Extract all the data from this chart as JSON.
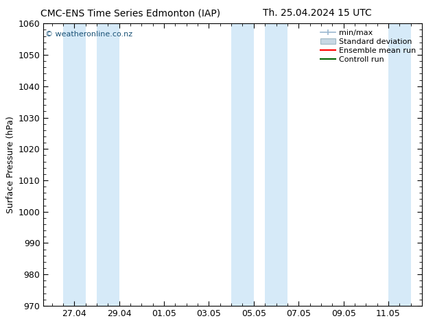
{
  "title_left": "CMC-ENS Time Series Edmonton (IAP)",
  "title_right": "Th. 25.04.2024 15 UTC",
  "ylabel": "Surface Pressure (hPa)",
  "ylim": [
    970,
    1060
  ],
  "yticks": [
    970,
    980,
    990,
    1000,
    1010,
    1020,
    1030,
    1040,
    1050,
    1060
  ],
  "xtick_labels": [
    "27.04",
    "29.04",
    "01.05",
    "03.05",
    "05.05",
    "07.05",
    "09.05",
    "11.05"
  ],
  "watermark": "© weatheronline.co.nz",
  "watermark_color": "#1a5276",
  "band_color": "#d6eaf8",
  "bg_color": "#ffffff",
  "legend_fontsize": 8,
  "title_fontsize": 10,
  "ylabel_fontsize": 9
}
